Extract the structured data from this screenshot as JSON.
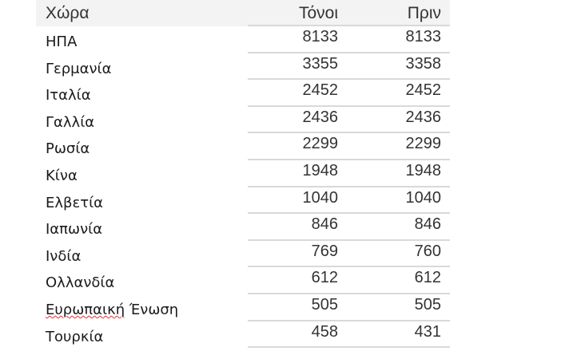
{
  "table": {
    "headers": [
      "Χώρα",
      "Τόνοι",
      "Πριν"
    ],
    "rows": [
      {
        "country": "ΗΠΑ",
        "tonnes": "8133",
        "before": "8133"
      },
      {
        "country": "Γερμανία",
        "tonnes": "3355",
        "before": "3358"
      },
      {
        "country": "Ιταλία",
        "tonnes": "2452",
        "before": "2452"
      },
      {
        "country": "Γαλλία",
        "tonnes": "2436",
        "before": "2436"
      },
      {
        "country": "Ρωσία",
        "tonnes": "2299",
        "before": "2299"
      },
      {
        "country": "Κίνα",
        "tonnes": "1948",
        "before": "1948"
      },
      {
        "country": "Ελβετία",
        "tonnes": "1040",
        "before": "1040"
      },
      {
        "country": "Ιαπωνία",
        "tonnes": "846",
        "before": "846"
      },
      {
        "country": "Ινδία",
        "tonnes": "769",
        "before": "760"
      },
      {
        "country": "Ολλανδία",
        "tonnes": "612",
        "before": "612"
      },
      {
        "country": "Ευρωπαική Ένωση",
        "tonnes": "505",
        "before": "505"
      },
      {
        "country": "Τουρκία",
        "tonnes": "458",
        "before": "431"
      }
    ]
  }
}
